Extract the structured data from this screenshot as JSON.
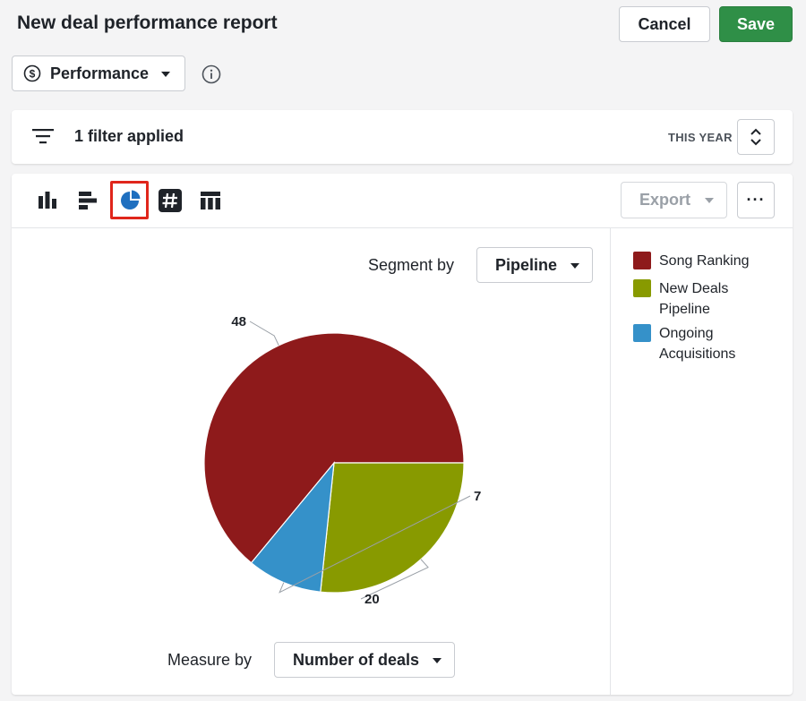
{
  "header": {
    "title": "New deal performance report",
    "cancel_label": "Cancel",
    "save_label": "Save"
  },
  "report_type": {
    "selected": "Performance",
    "icon": "dollar-circle-icon"
  },
  "filter_bar": {
    "filter_text": "1 filter applied",
    "period_label": "THIS YEAR"
  },
  "toolbar": {
    "chart_types": [
      "column-chart-icon",
      "bar-chart-icon",
      "pie-chart-icon",
      "number-icon",
      "table-icon"
    ],
    "selected_chart_type": "pie-chart-icon",
    "export_label": "Export",
    "more_label": "···"
  },
  "controls": {
    "segment_label": "Segment by",
    "segment_value": "Pipeline",
    "measure_label": "Measure by",
    "measure_value": "Number of deals"
  },
  "legend": [
    {
      "name": "Song Ranking",
      "color": "#8e1a1b"
    },
    {
      "name": "New Deals Pipeline",
      "color": "#889a00"
    },
    {
      "name": "Ongoing Acquisitions",
      "color": "#3591c9"
    }
  ],
  "chart_data": {
    "type": "pie",
    "categories": [
      "Song Ranking",
      "New Deals Pipeline",
      "Ongoing Acquisitions"
    ],
    "values": [
      48,
      20,
      7
    ],
    "colors": [
      "#8e1a1b",
      "#889a00",
      "#3591c9"
    ],
    "title": "",
    "legend_position": "right"
  },
  "colors": {
    "save": "#2f8f47",
    "selected_outline": "#e0261b",
    "selected_icon": "#1f6fbf"
  }
}
